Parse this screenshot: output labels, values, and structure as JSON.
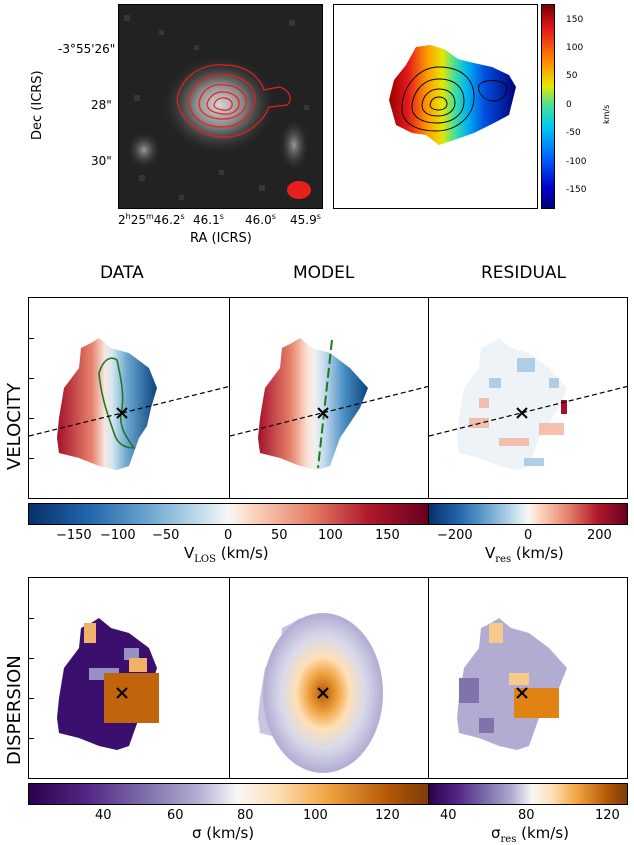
{
  "top": {
    "dec_axis_label": "Dec (ICRS)",
    "ra_axis_label": "RA (ICRS)",
    "dec_ticks": [
      "-3°55'26\"",
      "28\"",
      "30\""
    ],
    "ra_ticks": [
      {
        "h": "2",
        "hs": "h",
        "m": "25",
        "ms": "m",
        "s": "46.2",
        "ss": "s"
      },
      {
        "s": "46.1",
        "ss": "s"
      },
      {
        "s": "46.0",
        "ss": "s"
      },
      {
        "s": "45.9",
        "ss": "s"
      }
    ],
    "colorbar_unit": "km/s",
    "colorbar_ticks": [
      "150",
      "100",
      "50",
      "0",
      "-50",
      "-100",
      "-150"
    ]
  },
  "columns": {
    "data": "DATA",
    "model": "MODEL",
    "residual": "RESIDUAL"
  },
  "rows": {
    "velocity": "VELOCITY",
    "dispersion": "DISPERSION"
  },
  "velocity_colorbar": {
    "ticks": [
      "−150",
      "−100",
      "−50",
      "0",
      "50",
      "100",
      "150"
    ],
    "label_main": "V",
    "label_sub": "LOS",
    "label_unit": " (km/s)"
  },
  "residual_velocity_colorbar": {
    "ticks": [
      "−200",
      "0",
      "200"
    ],
    "label_main": "V",
    "label_sub": "res",
    "label_unit": " (km/s)"
  },
  "dispersion_colorbar": {
    "ticks": [
      "40",
      "60",
      "80",
      "100",
      "120"
    ],
    "label_main": "σ",
    "label_unit": " (km/s)"
  },
  "residual_dispersion_colorbar": {
    "ticks": [
      "40",
      "80",
      "120"
    ],
    "label_main": "σ",
    "label_sub": "res",
    "label_unit": " (km/s)"
  },
  "colors": {
    "contour_red": "#e8201c",
    "contour_green": "#1f7a1f",
    "rdbu_blue": "#2166ac",
    "rdbu_red": "#9e0f2b",
    "purple_dark": "#3b0f6e",
    "orange_dark": "#8a4300"
  }
}
